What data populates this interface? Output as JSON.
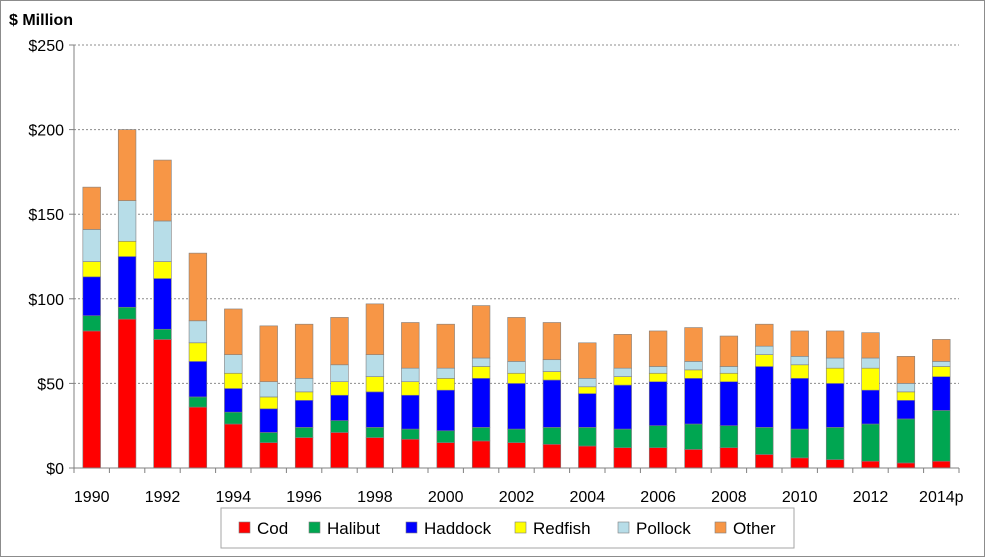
{
  "chart_data": {
    "type": "bar",
    "stacked": true,
    "ylabel": "$ Million",
    "ylim": [
      0,
      250
    ],
    "yticks": [
      "$0",
      "$50",
      "$100",
      "$150",
      "$200",
      "$250"
    ],
    "grid": true,
    "legend_position": "bottom",
    "categories": [
      "1990",
      "1991",
      "1992",
      "1993",
      "1994",
      "1995",
      "1996",
      "1997",
      "1998",
      "1999",
      "2000",
      "2001",
      "2002",
      "2003",
      "2004",
      "2005",
      "2006",
      "2007",
      "2008",
      "2009",
      "2010",
      "2011",
      "2012",
      "2013",
      "2014p"
    ],
    "xtick_labels": [
      "1990",
      "",
      "1992",
      "",
      "1994",
      "",
      "1996",
      "",
      "1998",
      "",
      "2000",
      "",
      "2002",
      "",
      "2004",
      "",
      "2006",
      "",
      "2008",
      "",
      "2010",
      "",
      "2012",
      "",
      "2014p"
    ],
    "series": [
      {
        "name": "Cod",
        "color": "#ff0000",
        "values": [
          81,
          88,
          76,
          36,
          26,
          15,
          18,
          21,
          18,
          17,
          15,
          16,
          15,
          14,
          13,
          12,
          12,
          11,
          12,
          8,
          6,
          5,
          4,
          3,
          4
        ]
      },
      {
        "name": "Halibut",
        "color": "#00a651",
        "values": [
          9,
          7,
          6,
          6,
          7,
          6,
          6,
          7,
          6,
          6,
          7,
          8,
          8,
          10,
          11,
          11,
          13,
          15,
          13,
          16,
          17,
          19,
          22,
          26,
          30
        ]
      },
      {
        "name": "Haddock",
        "color": "#0000ff",
        "values": [
          23,
          30,
          30,
          21,
          14,
          14,
          16,
          15,
          21,
          20,
          24,
          29,
          27,
          28,
          20,
          26,
          26,
          27,
          26,
          36,
          30,
          26,
          20,
          11,
          20
        ]
      },
      {
        "name": "Redfish",
        "color": "#ffff00",
        "values": [
          9,
          9,
          10,
          11,
          9,
          7,
          5,
          8,
          9,
          8,
          7,
          7,
          6,
          5,
          4,
          5,
          5,
          5,
          5,
          7,
          8,
          9,
          13,
          5,
          6
        ]
      },
      {
        "name": "Pollock",
        "color": "#b7dde8",
        "values": [
          19,
          24,
          24,
          13,
          11,
          9,
          8,
          10,
          13,
          8,
          6,
          5,
          7,
          7,
          5,
          5,
          4,
          5,
          4,
          5,
          5,
          6,
          6,
          5,
          3
        ]
      },
      {
        "name": "Other",
        "color": "#f79646",
        "values": [
          25,
          42,
          36,
          40,
          27,
          33,
          32,
          28,
          30,
          27,
          26,
          31,
          26,
          22,
          21,
          20,
          21,
          20,
          18,
          13,
          15,
          16,
          15,
          16,
          13
        ]
      }
    ]
  }
}
